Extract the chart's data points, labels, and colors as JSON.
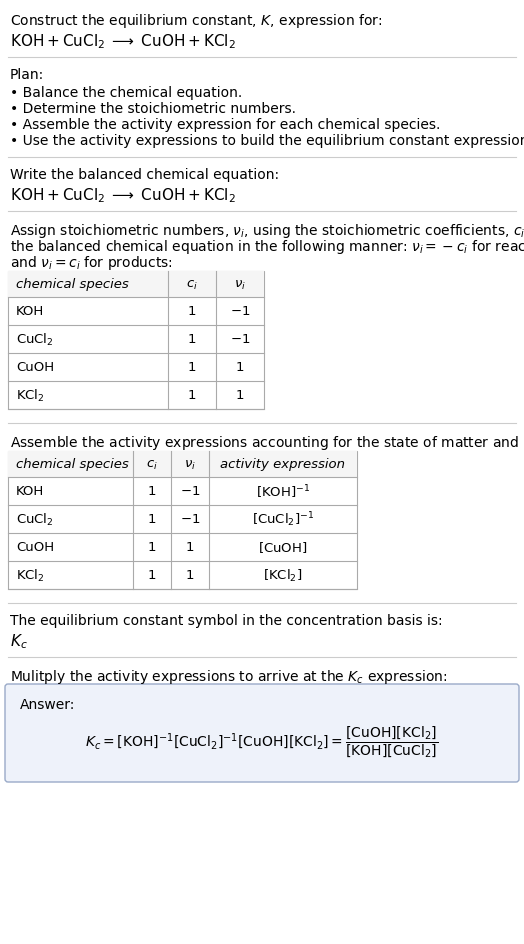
{
  "title_line1": "Construct the equilibrium constant, $K$, expression for:",
  "title_line2": "$\\mathrm{KOH + CuCl_2 \\;\\longrightarrow\\; CuOH + KCl_2}$",
  "plan_header": "Plan:",
  "plan_items": [
    "• Balance the chemical equation.",
    "• Determine the stoichiometric numbers.",
    "• Assemble the activity expression for each chemical species.",
    "• Use the activity expressions to build the equilibrium constant expression."
  ],
  "balanced_header": "Write the balanced chemical equation:",
  "balanced_eq": "$\\mathrm{KOH + CuCl_2 \\;\\longrightarrow\\; CuOH + KCl_2}$",
  "stoich_intro1": "Assign stoichiometric numbers, $\\nu_i$, using the stoichiometric coefficients, $c_i$, from",
  "stoich_intro2": "the balanced chemical equation in the following manner: $\\nu_i = -c_i$ for reactants",
  "stoich_intro3": "and $\\nu_i = c_i$ for products:",
  "table1_headers": [
    "chemical species",
    "$c_i$",
    "$\\nu_i$"
  ],
  "table1_rows": [
    [
      "KOH",
      "1",
      "$-1$"
    ],
    [
      "$\\mathrm{CuCl_2}$",
      "1",
      "$-1$"
    ],
    [
      "CuOH",
      "1",
      "$1$"
    ],
    [
      "$\\mathrm{KCl_2}$",
      "1",
      "$1$"
    ]
  ],
  "activity_intro": "Assemble the activity expressions accounting for the state of matter and $\\nu_i$:",
  "table2_headers": [
    "chemical species",
    "$c_i$",
    "$\\nu_i$",
    "activity expression"
  ],
  "table2_rows": [
    [
      "KOH",
      "1",
      "$-1$",
      "$[\\mathrm{KOH}]^{-1}$"
    ],
    [
      "$\\mathrm{CuCl_2}$",
      "1",
      "$-1$",
      "$[\\mathrm{CuCl_2}]^{-1}$"
    ],
    [
      "CuOH",
      "1",
      "$1$",
      "$[\\mathrm{CuOH}]$"
    ],
    [
      "$\\mathrm{KCl_2}$",
      "1",
      "$1$",
      "$[\\mathrm{KCl_2}]$"
    ]
  ],
  "kc_text": "The equilibrium constant symbol in the concentration basis is:",
  "kc_symbol": "$K_c$",
  "multiply_text": "Mulitply the activity expressions to arrive at the $K_c$ expression:",
  "answer_label": "Answer:",
  "kc_expr": "$K_c = [\\mathrm{KOH}]^{-1}[\\mathrm{CuCl_2}]^{-1}[\\mathrm{CuOH}][\\mathrm{KCl_2}] = \\dfrac{[\\mathrm{CuOH}][\\mathrm{KCl_2}]}{[\\mathrm{KOH}][\\mathrm{CuCl_2}]}$",
  "bg_color": "#ffffff",
  "text_color": "#000000",
  "line_color": "#cccccc",
  "table_border_color": "#aaaaaa",
  "answer_bg_color": "#eef2fa",
  "answer_border_color": "#9aaac8"
}
